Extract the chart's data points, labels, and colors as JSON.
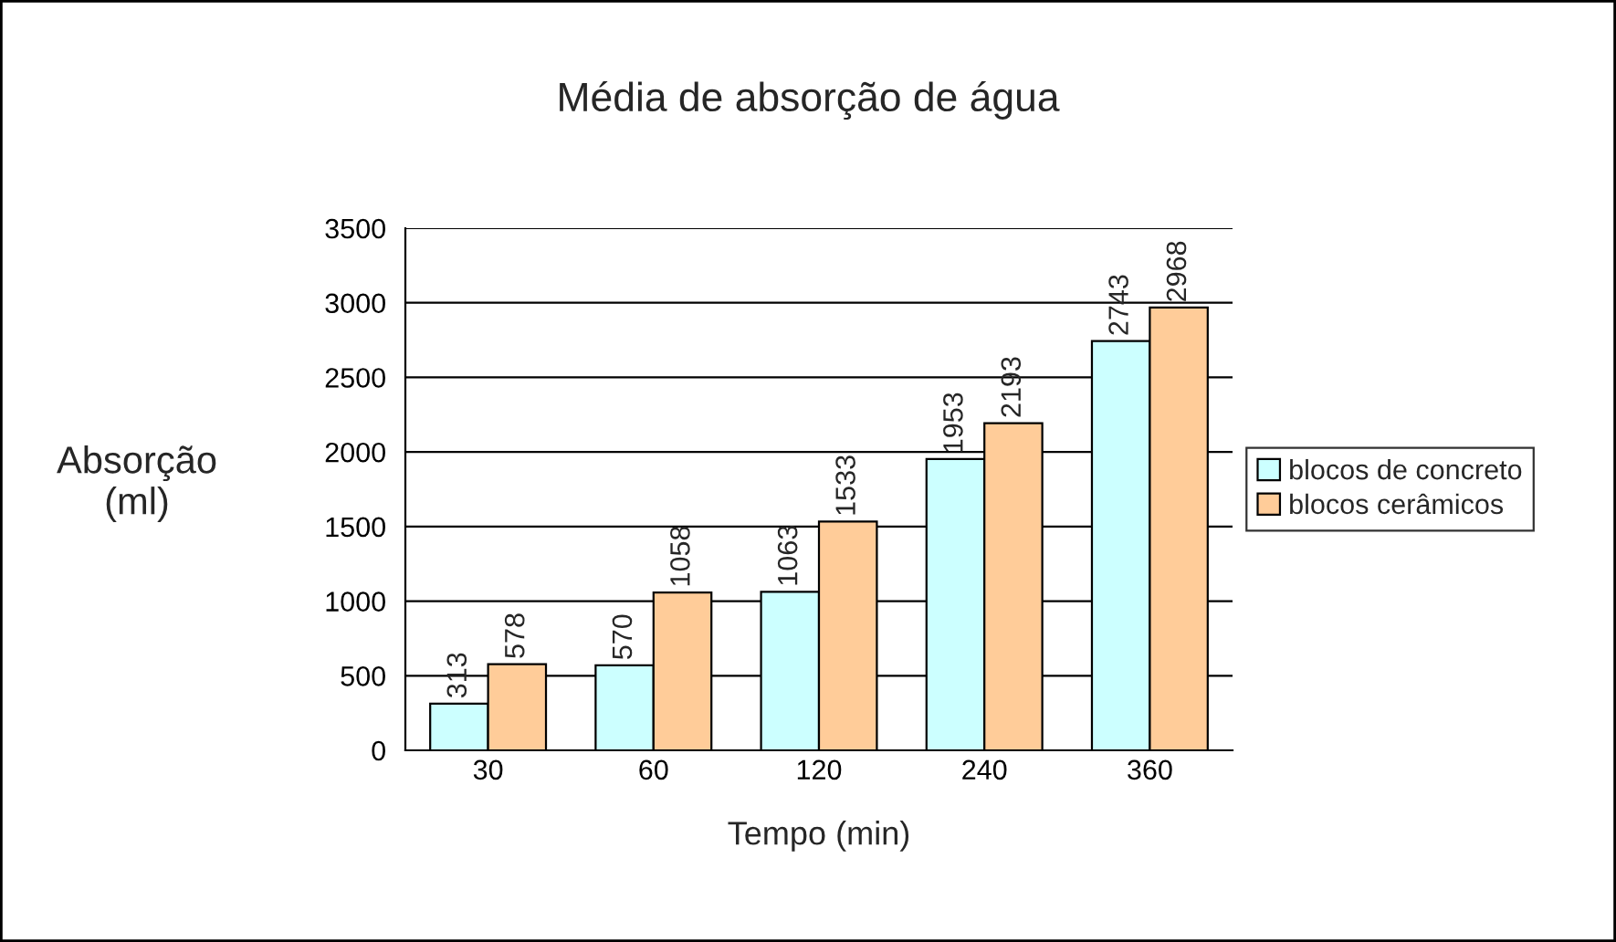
{
  "chart_data": {
    "type": "bar",
    "title": "Média de absorção de água",
    "xlabel": "Tempo (min)",
    "ylabel": "Absorção\n(ml)",
    "categories": [
      "30",
      "60",
      "120",
      "240",
      "360"
    ],
    "series": [
      {
        "name": "blocos de concreto",
        "color": "#ccffff",
        "values": [
          313,
          570,
          1063,
          1953,
          2743
        ]
      },
      {
        "name": "blocos cerâmicos",
        "color": "#ffcc99",
        "values": [
          578,
          1058,
          1533,
          2193,
          2968
        ]
      }
    ],
    "ylim": [
      0,
      3500
    ],
    "yticks": [
      0,
      500,
      1000,
      1500,
      2000,
      2500,
      3000,
      3500
    ],
    "grid": "y",
    "legend": "right",
    "data_labels": true
  }
}
